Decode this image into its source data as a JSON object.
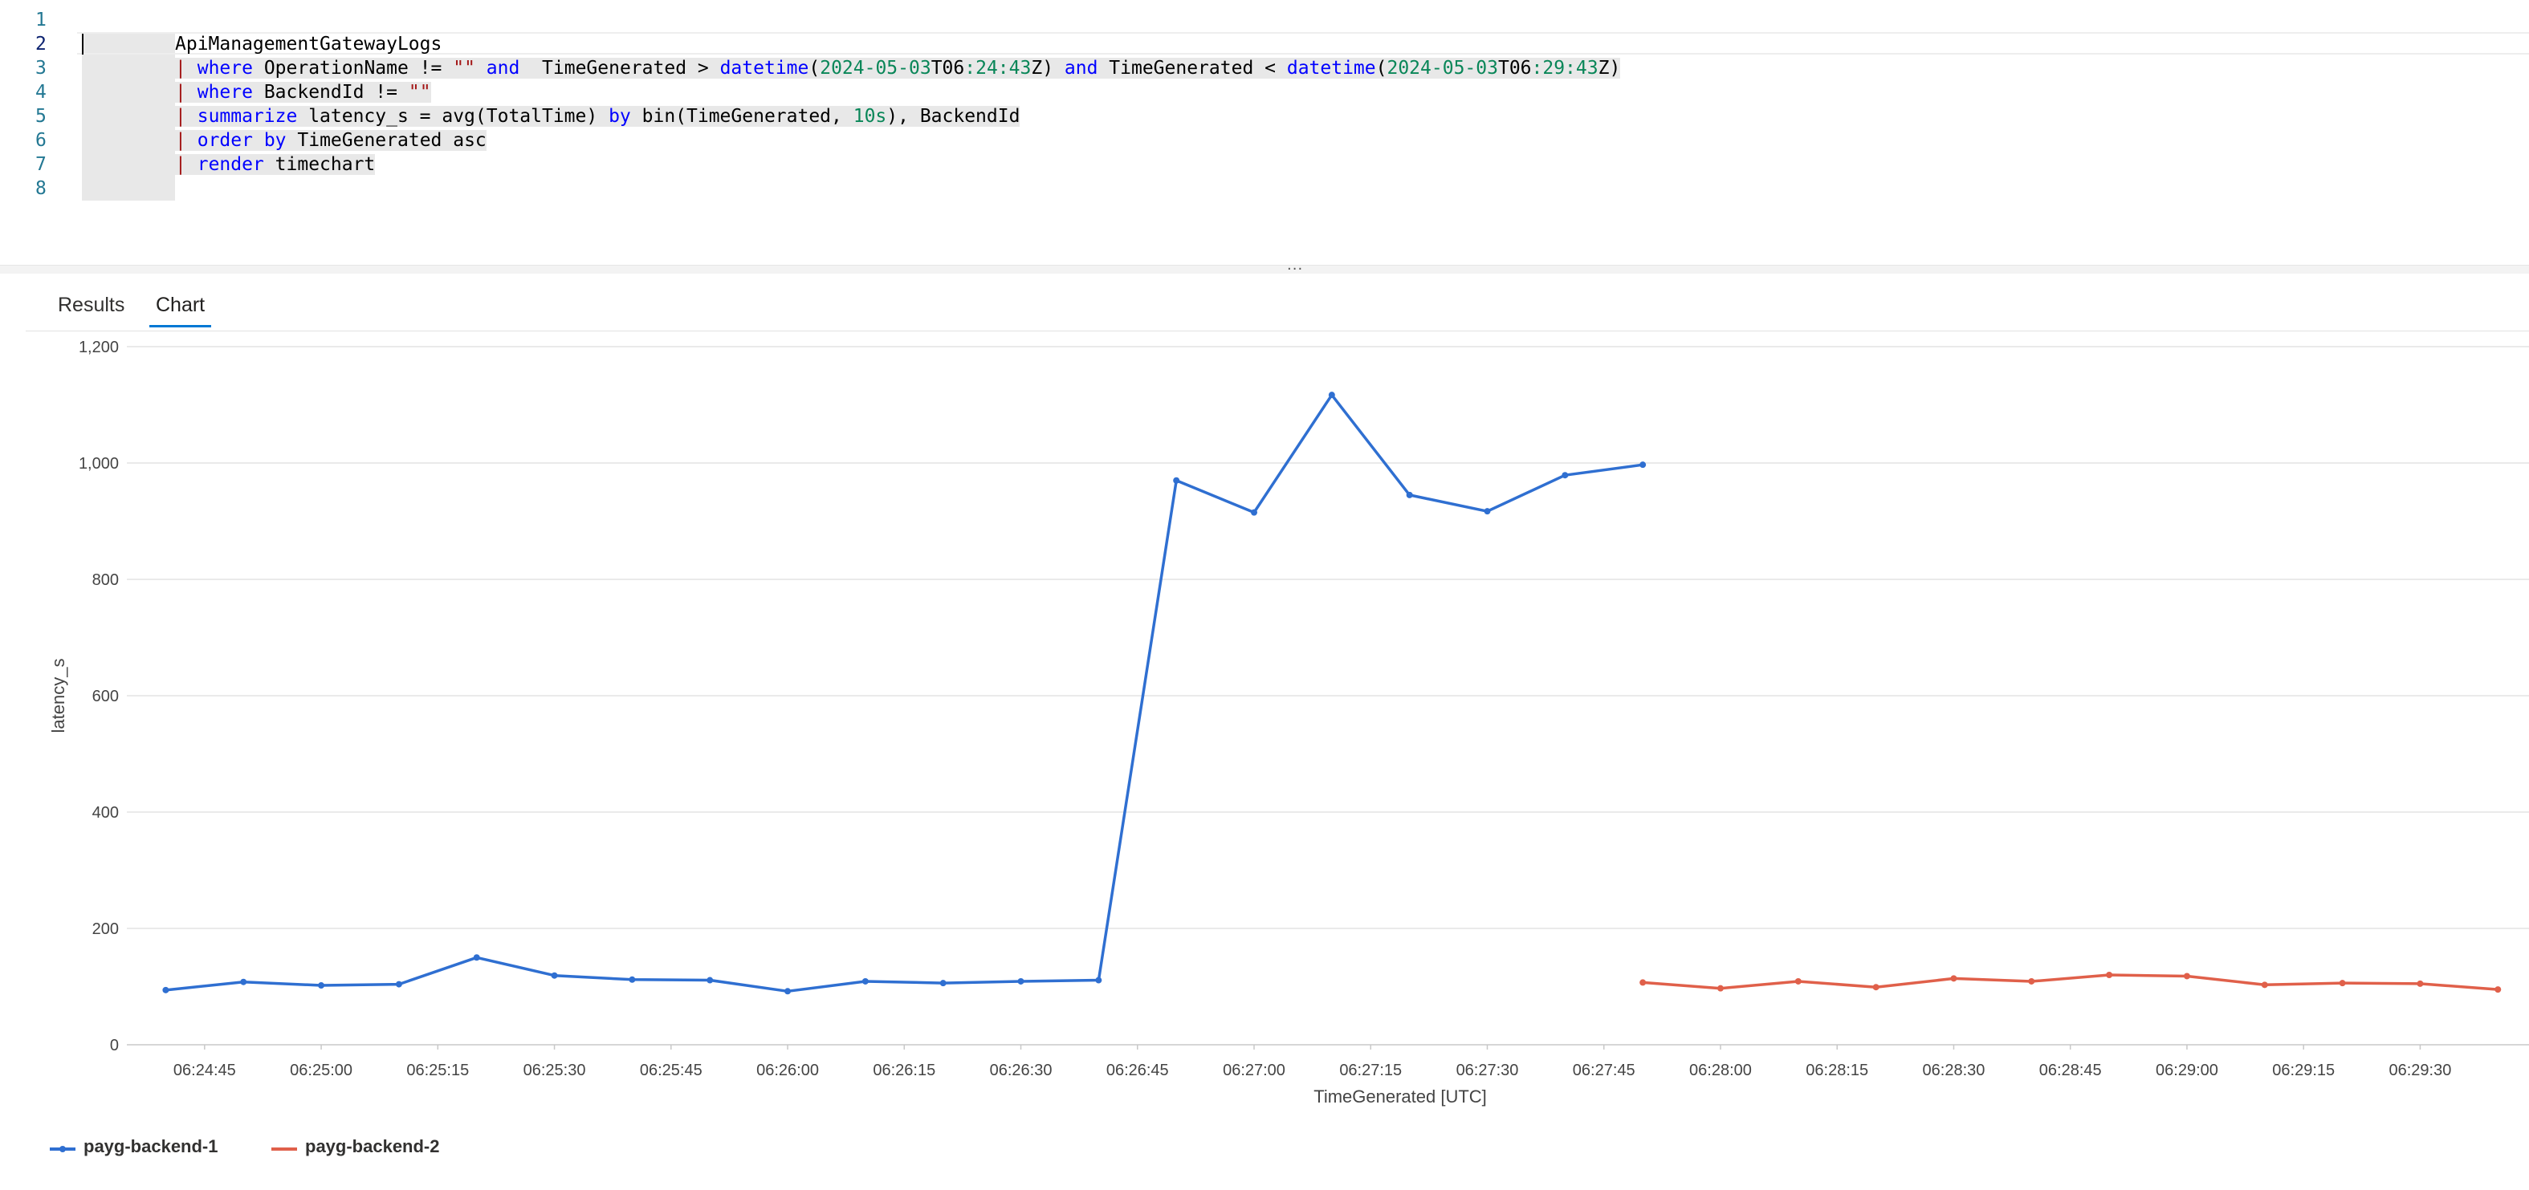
{
  "editor": {
    "line_numbers": [
      "1",
      "2",
      "3",
      "4",
      "5",
      "6",
      "7",
      "8"
    ],
    "lines": {
      "l2": {
        "table": "ApiManagementGatewayLogs"
      },
      "l3": {
        "pipe": "|",
        "where": "where",
        "a": " OperationName != ",
        "empty": "\"\"",
        "and1": "and",
        "b": "  TimeGenerated > ",
        "dt1": "datetime",
        "p1": "(",
        "date1": "2024-05-03",
        "t1": "T06",
        "time1": ":24:43",
        "z1": "Z) ",
        "and2": "and",
        "c": " TimeGenerated < ",
        "dt2": "datetime",
        "p2": "(",
        "date2": "2024-05-03",
        "t2": "T06",
        "time2": ":29:43",
        "z2": "Z)"
      },
      "l4": {
        "pipe": "|",
        "where": "where",
        "a": " BackendId != ",
        "empty": "\"\""
      },
      "l5": {
        "pipe": "|",
        "summarize": "summarize",
        "a": " latency_s = avg(TotalTime) ",
        "by": "by",
        "b": " bin(TimeGenerated, ",
        "n": "10s",
        "c": "), BackendId"
      },
      "l6": {
        "pipe": "|",
        "order": "order",
        "by": "by",
        "a": " TimeGenerated asc"
      },
      "l7": {
        "pipe": "|",
        "render": "render",
        "a": " timechart"
      }
    }
  },
  "splitter": {
    "handle": "..."
  },
  "tabs": [
    {
      "label": "Results",
      "active": false
    },
    {
      "label": "Chart",
      "active": true
    }
  ],
  "chart_data": {
    "type": "line",
    "xlabel": "TimeGenerated [UTC]",
    "ylabel": "latency_s",
    "ylim": [
      0,
      1200
    ],
    "yticks": [
      "0",
      "200",
      "400",
      "600",
      "800",
      "1,000",
      "1,200"
    ],
    "xticks": [
      "06:24:45",
      "06:25:00",
      "06:25:15",
      "06:25:30",
      "06:25:45",
      "06:26:00",
      "06:26:15",
      "06:26:30",
      "06:26:45",
      "06:27:00",
      "06:27:15",
      "06:27:30",
      "06:27:45",
      "06:28:00",
      "06:28:15",
      "06:28:30",
      "06:28:45",
      "06:29:00",
      "06:29:15",
      "06:29:30"
    ],
    "grid": true,
    "legend": "bottom-left",
    "series": [
      {
        "name": "payg-backend-1",
        "color": "#2f6fd1",
        "x": [
          "06:24:40",
          "06:24:50",
          "06:25:00",
          "06:25:10",
          "06:25:20",
          "06:25:30",
          "06:25:40",
          "06:25:50",
          "06:26:00",
          "06:26:10",
          "06:26:20",
          "06:26:30",
          "06:26:40",
          "06:26:50",
          "06:27:00",
          "06:27:10",
          "06:27:20",
          "06:27:30",
          "06:27:40",
          "06:27:50"
        ],
        "values": [
          94,
          108,
          102,
          104,
          150,
          119,
          112,
          111,
          92,
          109,
          106,
          109,
          111,
          970,
          915,
          1117,
          945,
          917,
          979,
          997
        ]
      },
      {
        "name": "payg-backend-2",
        "color": "#e0604a",
        "x": [
          "06:27:50",
          "06:28:00",
          "06:28:10",
          "06:28:20",
          "06:28:30",
          "06:28:40",
          "06:28:50",
          "06:29:00",
          "06:29:10",
          "06:29:20",
          "06:29:30",
          "06:29:40"
        ],
        "values": [
          107,
          97,
          109,
          99,
          114,
          109,
          120,
          118,
          103,
          106,
          105,
          95
        ]
      }
    ]
  }
}
